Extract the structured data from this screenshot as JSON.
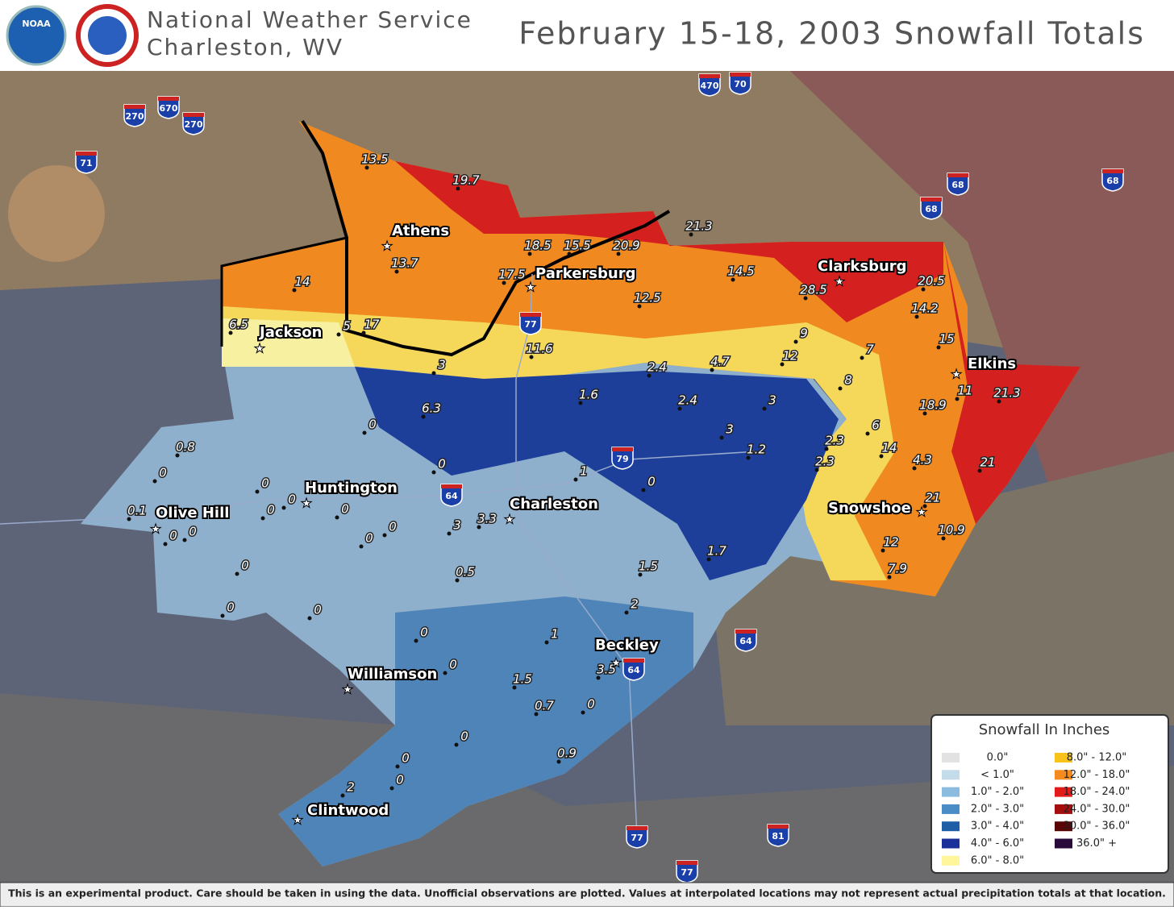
{
  "header": {
    "noaa_logo": "NOAA",
    "agency": "National Weather Service",
    "office": "Charleston, WV",
    "title": "February 15-18, 2003 Snowfall Totals"
  },
  "cities": [
    "Athens",
    "Parkersburg",
    "Jackson",
    "Clarksburg",
    "Elkins",
    "Huntington",
    "Olive Hill",
    "Charleston",
    "Snowshoe",
    "Beckley",
    "Williamson",
    "Clintwood"
  ],
  "observations": [
    "13.5",
    "19.7",
    "18.5",
    "15.5",
    "20.9",
    "21.3",
    "17.5",
    "13.7",
    "14",
    "14.5",
    "12.5",
    "28.5",
    "20.5",
    "14.2",
    "15",
    "6.5",
    "5",
    "17",
    "9",
    "12",
    "7",
    "11.6",
    "2.4",
    "4.7",
    "8",
    "11",
    "21.3",
    "18.9",
    "3",
    "1.6",
    "2.4",
    "3",
    "6",
    "6.3",
    "0",
    "3",
    "1.2",
    "2.3",
    "2.3",
    "14",
    "4.3",
    "21",
    "0.8",
    "0",
    "0",
    "1",
    "0",
    "0",
    "21",
    "0.1",
    "0",
    "0",
    "0",
    "3.3",
    "3",
    "0",
    "0",
    "0",
    "0",
    "1.7",
    "10.9",
    "12",
    "7.9",
    "0.5",
    "1.5",
    "0",
    "2",
    "0",
    "0",
    "1",
    "0",
    "3.5",
    "0",
    "1.5",
    "0.7",
    "0",
    "0",
    "0.9",
    "0",
    "2",
    "0"
  ],
  "interstates": [
    "270",
    "670",
    "270",
    "71",
    "470",
    "70",
    "68",
    "68",
    "68",
    "77",
    "79",
    "64",
    "64",
    "64",
    "77",
    "81",
    "77"
  ],
  "legend": {
    "title": "Snowfall In Inches",
    "entries": [
      {
        "label": "0.0\"",
        "color": "#e2e2e2"
      },
      {
        "label": "< 1.0\"",
        "color": "#c4dbea"
      },
      {
        "label": "1.0\" - 2.0\"",
        "color": "#8cbbe0"
      },
      {
        "label": "2.0\" - 3.0\"",
        "color": "#4a8cc6"
      },
      {
        "label": "3.0\" - 4.0\"",
        "color": "#1f5fa8"
      },
      {
        "label": "4.0\" - 6.0\"",
        "color": "#1a2f9a"
      },
      {
        "label": "6.0\" - 8.0\"",
        "color": "#fff59a"
      },
      {
        "label": "8.0\" - 12.0\"",
        "color": "#f9c21a"
      },
      {
        "label": "12.0\" - 18.0\"",
        "color": "#f58a1e"
      },
      {
        "label": "18.0\" - 24.0\"",
        "color": "#e21b1b"
      },
      {
        "label": "24.0\" - 30.0\"",
        "color": "#a40e0e"
      },
      {
        "label": "30.0\" - 36.0\"",
        "color": "#5a0606"
      },
      {
        "label": "36.0\" +",
        "color": "#2a0a3a"
      }
    ]
  },
  "footer": "This is an experimental product. Care should be taken in using the data. Unofficial observations are plotted. Values at interpolated locations may not represent actual precipitation totals at that location."
}
